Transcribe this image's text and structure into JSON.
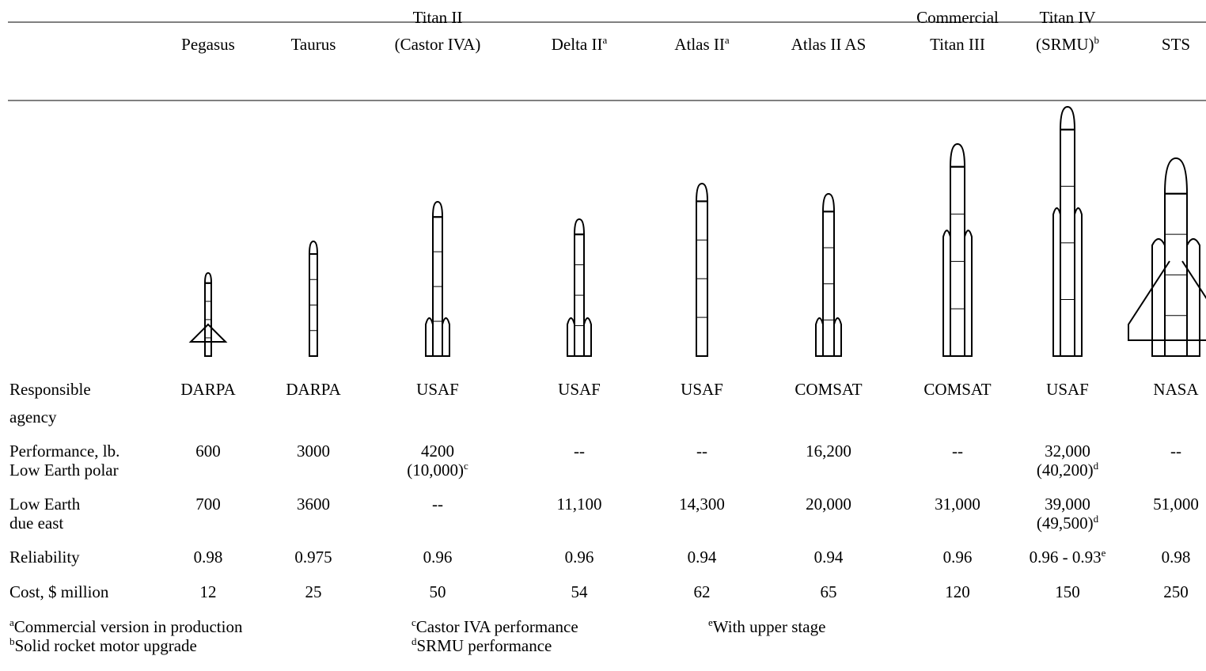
{
  "columns": [
    {
      "lines": [
        "Pegasus"
      ]
    },
    {
      "lines": [
        "Taurus"
      ]
    },
    {
      "lines": [
        "Titan II",
        "(Castor IVA)"
      ]
    },
    {
      "lines": [
        "Delta II"
      ],
      "note": "a"
    },
    {
      "lines": [
        "Atlas II"
      ],
      "note": "a"
    },
    {
      "lines": [
        "Atlas II AS"
      ]
    },
    {
      "lines": [
        "Commercial",
        "Titan III"
      ]
    },
    {
      "lines": [
        "Titan IV",
        "(SRMU)"
      ],
      "note": "b"
    },
    {
      "lines": [
        "STS"
      ]
    }
  ],
  "rows": [
    {
      "label": [
        "Responsible",
        "agency"
      ],
      "cells": [
        {
          "lines": [
            "DARPA"
          ]
        },
        {
          "lines": [
            "DARPA"
          ]
        },
        {
          "lines": [
            "USAF"
          ]
        },
        {
          "lines": [
            "USAF"
          ]
        },
        {
          "lines": [
            "USAF"
          ]
        },
        {
          "lines": [
            "COMSAT"
          ]
        },
        {
          "lines": [
            "COMSAT"
          ]
        },
        {
          "lines": [
            "USAF"
          ]
        },
        {
          "lines": [
            "NASA"
          ]
        }
      ]
    },
    {
      "label": [
        "Performance, lb.",
        "Low Earth polar"
      ],
      "cells": [
        {
          "lines": [
            "600"
          ]
        },
        {
          "lines": [
            "3000"
          ]
        },
        {
          "lines": [
            "4200",
            "(10,000)"
          ],
          "note": "c"
        },
        {
          "lines": [
            "--"
          ]
        },
        {
          "lines": [
            "--"
          ]
        },
        {
          "lines": [
            "16,200"
          ]
        },
        {
          "lines": [
            "--"
          ]
        },
        {
          "lines": [
            "32,000",
            "(40,200)"
          ],
          "note": "d"
        },
        {
          "lines": [
            "--"
          ]
        }
      ]
    },
    {
      "label": [
        "Low Earth",
        "due east"
      ],
      "cells": [
        {
          "lines": [
            "700"
          ]
        },
        {
          "lines": [
            "3600"
          ]
        },
        {
          "lines": [
            "--"
          ]
        },
        {
          "lines": [
            "11,100"
          ]
        },
        {
          "lines": [
            "14,300"
          ]
        },
        {
          "lines": [
            "20,000"
          ]
        },
        {
          "lines": [
            "31,000"
          ]
        },
        {
          "lines": [
            "39,000",
            "(49,500)"
          ],
          "note": "d"
        },
        {
          "lines": [
            "51,000"
          ]
        }
      ]
    },
    {
      "label": [
        "Reliability"
      ],
      "cells": [
        {
          "lines": [
            "0.98"
          ]
        },
        {
          "lines": [
            "0.975"
          ]
        },
        {
          "lines": [
            "0.96"
          ]
        },
        {
          "lines": [
            "0.96"
          ]
        },
        {
          "lines": [
            "0.94"
          ]
        },
        {
          "lines": [
            "0.94"
          ]
        },
        {
          "lines": [
            "0.96"
          ]
        },
        {
          "lines": [
            "0.96 - 0.93"
          ],
          "note": "e"
        },
        {
          "lines": [
            "0.98"
          ]
        }
      ]
    },
    {
      "label": [
        "Cost, $ million"
      ],
      "cells": [
        {
          "lines": [
            "12"
          ]
        },
        {
          "lines": [
            "25"
          ]
        },
        {
          "lines": [
            "50"
          ]
        },
        {
          "lines": [
            "54"
          ]
        },
        {
          "lines": [
            "62"
          ]
        },
        {
          "lines": [
            "65"
          ]
        },
        {
          "lines": [
            "120"
          ]
        },
        {
          "lines": [
            "150"
          ]
        },
        {
          "lines": [
            "250"
          ]
        }
      ]
    }
  ],
  "footnotes": [
    {
      "mark": "a",
      "text": "Commercial version in production"
    },
    {
      "mark": "b",
      "text": "Solid rocket motor upgrade"
    },
    {
      "mark": "c",
      "text": "Castor IVA performance"
    },
    {
      "mark": "d",
      "text": "SRMU performance"
    },
    {
      "mark": "e",
      "text": "With upper stage"
    }
  ]
}
